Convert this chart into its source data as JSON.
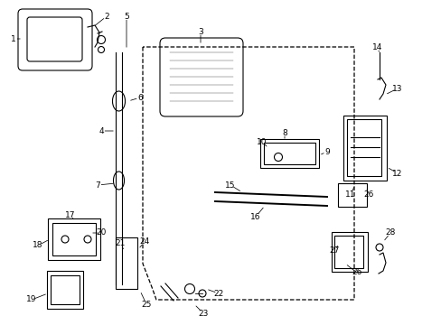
{
  "background": "#ffffff",
  "fig_width": 4.89,
  "fig_height": 3.6,
  "dpi": 100,
  "labels": [
    [
      1,
      15,
      43,
      25,
      43
    ],
    [
      2,
      118,
      18,
      103,
      30
    ],
    [
      5,
      140,
      18,
      140,
      55
    ],
    [
      3,
      222,
      35,
      222,
      50
    ],
    [
      4,
      112,
      145,
      128,
      145
    ],
    [
      6,
      155,
      108,
      142,
      112
    ],
    [
      7,
      108,
      205,
      128,
      203
    ],
    [
      8,
      315,
      147,
      315,
      156
    ],
    [
      9,
      362,
      168,
      353,
      172
    ],
    [
      10,
      290,
      157,
      297,
      164
    ],
    [
      11,
      388,
      215,
      393,
      205
    ],
    [
      12,
      440,
      192,
      428,
      185
    ],
    [
      13,
      440,
      98,
      426,
      105
    ],
    [
      14,
      418,
      52,
      420,
      60
    ],
    [
      15,
      255,
      205,
      268,
      213
    ],
    [
      16,
      283,
      240,
      293,
      228
    ],
    [
      17,
      78,
      238,
      83,
      245
    ],
    [
      18,
      42,
      272,
      55,
      265
    ],
    [
      19,
      35,
      332,
      53,
      325
    ],
    [
      20,
      112,
      258,
      100,
      258
    ],
    [
      21,
      133,
      270,
      138,
      278
    ],
    [
      22,
      242,
      325,
      228,
      320
    ],
    [
      23,
      225,
      347,
      215,
      337
    ],
    [
      24,
      160,
      268,
      153,
      276
    ],
    [
      25,
      162,
      337,
      155,
      322
    ],
    [
      26,
      408,
      215,
      406,
      210
    ],
    [
      26,
      395,
      302,
      382,
      292
    ],
    [
      27,
      370,
      278,
      375,
      270
    ],
    [
      28,
      432,
      258,
      424,
      268
    ]
  ]
}
